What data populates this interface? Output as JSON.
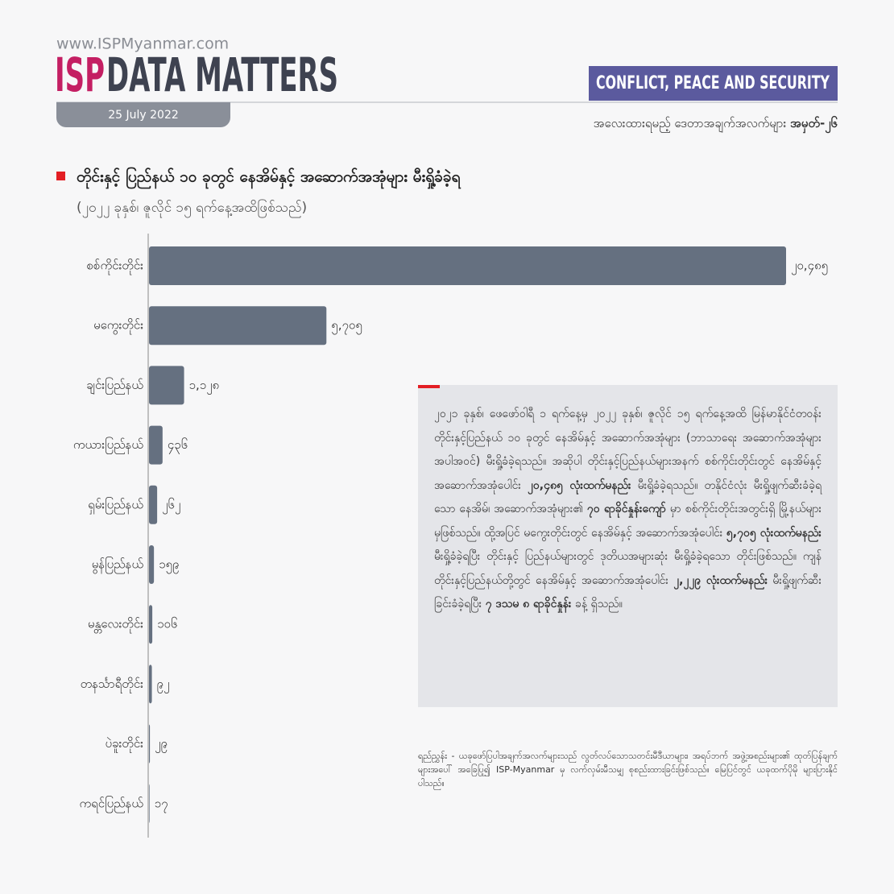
{
  "header": {
    "website": "www.ISPMyanmar.com",
    "brand": "ISP",
    "brand_title": "DATA MATTERS",
    "date": "25 July 2022",
    "section": "CONFLICT, PEACE AND SECURITY",
    "series_label": "အလေးထားရမည့် ဒေတာအချက်အလက်များ",
    "series_number": "အမှတ်-၂၆"
  },
  "chart_data": {
    "type": "bar",
    "orientation": "horizontal",
    "title": "တိုင်းနှင့် ပြည်နယ် ၁၀ ခုတွင် နေအိမ်နှင့် အဆောက်အအုံများ မီးရှို့ခံခဲ့ရ",
    "subtitle": "(၂၀၂၂ ခုနှစ်၊ ဇူလိုင် ၁၅ ရက်နေ့အထိဖြစ်သည်)",
    "categories": [
      "စစ်ကိုင်းတိုင်း",
      "မကွေးတိုင်း",
      "ချင်းပြည်နယ်",
      "ကယားပြည်နယ်",
      "ရှမ်းပြည်နယ်",
      "မွန်ပြည်နယ်",
      "မန္တလေးတိုင်း",
      "တနင်္သာရီတိုင်း",
      "ပဲခူးတိုင်း",
      "ကရင်ပြည်နယ်"
    ],
    "values": [
      20485,
      5705,
      1128,
      436,
      262,
      159,
      106,
      92,
      29,
      17
    ],
    "value_labels": [
      "၂၀,၄၈၅",
      "၅,၇၀၅",
      "၁,၁၂၈",
      "၄၃၆",
      "၂၆၂",
      "၁၅၉",
      "၁၀၆",
      "၉၂",
      "၂၉",
      "၁၇"
    ],
    "color": "#657080"
  },
  "note": {
    "segments": [
      {
        "text": "၂၀၂၁ ခုနှစ်၊ ဖေဖော်ဝါရီ ၁ ရက်နေ့မှ ၂၀၂၂ ခုနှစ်၊ ဇူလိုင် ၁၅ ရက်နေ့အထိ မြန်မာနိုင်ငံတဝန်း တိုင်းနှင့်ပြည်နယ် ၁၀ ခုတွင် နေအိမ်နှင့် အဆောက်အအုံများ (ဘာသာရေး အဆောက်အအုံများ အပါအဝင်) မီးရှို့ခံခဲ့ရသည်။ အဆိုပါ တိုင်းနှင့်ပြည်နယ်များအနက် စစ်ကိုင်းတိုင်းတွင် နေအိမ်နှင့် အဆောက်အအုံပေါင်း",
        "bold": false
      },
      {
        "text": "၂၀,၄၈၅ လုံးထက်မနည်း",
        "bold": true
      },
      {
        "text": "မီးရှို့ခံခဲ့ရသည်။ တနိုင်ငံလုံး မီးရှို့ဖျက်ဆီးခံခဲ့ရသော နေအိမ်၊ အဆောက်အအုံများ၏",
        "bold": false
      },
      {
        "text": "၇၀ ရာခိုင်နှုန်းကျော်",
        "bold": true
      },
      {
        "text": "မှာ စစ်ကိုင်းတိုင်းအတွင်းရှိ မြို့နယ်များမှဖြစ်သည်။ ထို့အပြင် မကွေးတိုင်းတွင် နေအိမ်နှင့် အဆောက်အအုံပေါင်း",
        "bold": false
      },
      {
        "text": "၅,၇၀၅ လုံးထက်မနည်း",
        "bold": true
      },
      {
        "text": "မီးရှို့ခံခဲ့ရပြီး တိုင်းနှင့် ပြည်နယ်များတွင် ဒုတိယအများဆုံး မီးရှို့ခံခဲ့ရသော တိုင်းဖြစ်သည်။ ကျန်တိုင်းနှင့်ပြည်နယ်တို့တွင် နေအိမ်နှင့် အဆောက်အအုံပေါင်း",
        "bold": false
      },
      {
        "text": "၂,၂၂၉ လုံးထက်မနည်း",
        "bold": true
      },
      {
        "text": "မီးရှို့ဖျက်ဆီးခြင်းခံခဲ့ရပြီး",
        "bold": false
      },
      {
        "text": "၇ ဒသမ ၈ ရာခိုင်နှုန်း",
        "bold": true
      },
      {
        "text": "ခန့် ရှိသည်။",
        "bold": false
      }
    ]
  },
  "source": {
    "label": "ရည်ညွှန်း -",
    "text": "ယခုဖော်ပြပါအချက်အလက်များသည် လွတ်လပ်သောသတင်းမီဒီယာများ၊ အရပ်ဘက် အဖွဲ့အစည်းများ၏ ထုတ်ပြန်ချက်များအပေါ် အခြေပြု၍ ISP-Myanmar မှ လက်လှမ်းမီသမျှ စုစည်းထားခြင်းဖြစ်သည်။ မြေပြင်တွင် ယခုထက်ပိုမို များပြားနိုင်ပါသည်။"
  }
}
